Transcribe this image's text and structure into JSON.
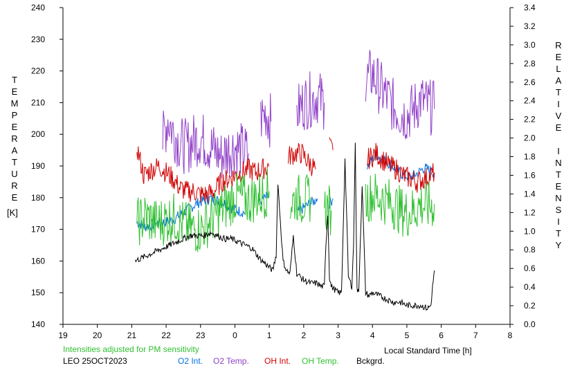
{
  "chart_data": {
    "type": "line",
    "xlabel": "Local Standard Time [h]",
    "x_ticks": [
      19,
      20,
      21,
      22,
      23,
      0,
      1,
      2,
      3,
      4,
      5,
      6,
      7,
      8
    ],
    "x_tick_labels": [
      "19",
      "20",
      "21",
      "22",
      "23",
      "0",
      "1",
      "2",
      "3",
      "4",
      "5",
      "6",
      "7",
      "8"
    ],
    "xlim": [
      19,
      32
    ],
    "left_axis": {
      "label_letters": [
        "T",
        "E",
        "M",
        "P",
        "E",
        "R",
        "A",
        "T",
        "U",
        "R",
        "E"
      ],
      "unit": "[K]",
      "ylim": [
        140,
        240
      ],
      "ticks": [
        "140",
        "150",
        "160",
        "170",
        "180",
        "190",
        "200",
        "210",
        "220",
        "230",
        "240"
      ]
    },
    "right_axis": {
      "label_line1": [
        "R",
        "E",
        "L",
        "A",
        "T",
        "I",
        "V",
        "E"
      ],
      "label_line2": [
        "I",
        "N",
        "T",
        "E",
        "N",
        "S",
        "I",
        "T",
        "Y"
      ],
      "ylim": [
        0.0,
        3.4
      ],
      "ticks": [
        "0.0",
        "0.2",
        "0.4",
        "0.6",
        "0.8",
        "1.0",
        "1.2",
        "1.4",
        "1.6",
        "1.8",
        "2.0",
        "2.2",
        "2.4",
        "2.6",
        "2.8",
        "3.0",
        "3.2",
        "3.4"
      ]
    },
    "note": "Intensities adjusted for PM sensitivity",
    "station": "LEO 25OCT2023",
    "series": [
      {
        "name": "O2 Int.",
        "color": "#0070e0",
        "axis": "right",
        "segments": [
          [
            [
              21.15,
              1.1
            ],
            [
              21.4,
              1.05
            ],
            [
              21.7,
              1.08
            ],
            [
              22.0,
              1.1
            ],
            [
              22.2,
              1.12
            ],
            [
              22.5,
              1.2
            ],
            [
              22.7,
              1.25
            ],
            [
              22.9,
              1.3
            ],
            [
              23.1,
              1.33
            ],
            [
              23.3,
              1.35
            ],
            [
              23.5,
              1.33
            ],
            [
              23.7,
              1.3
            ],
            [
              23.9,
              1.25
            ],
            [
              24.1,
              1.22
            ],
            [
              24.3,
              1.2
            ]
          ],
          [
            [
              24.7,
              1.3
            ],
            [
              24.85,
              1.35
            ],
            [
              25.0,
              1.38
            ]
          ],
          [
            [
              25.8,
              1.2
            ],
            [
              26.0,
              1.25
            ],
            [
              26.2,
              1.3
            ],
            [
              26.4,
              1.35
            ]
          ],
          [
            [
              26.75,
              1.3
            ],
            [
              26.85,
              1.35
            ]
          ],
          [
            [
              27.85,
              1.7
            ],
            [
              28.1,
              1.82
            ],
            [
              28.3,
              1.78
            ],
            [
              28.5,
              1.72
            ],
            [
              28.7,
              1.66
            ],
            [
              28.9,
              1.6
            ],
            [
              29.1,
              1.58
            ],
            [
              29.3,
              1.62
            ],
            [
              29.5,
              1.68
            ],
            [
              29.7,
              1.65
            ],
            [
              29.8,
              1.62
            ]
          ]
        ]
      },
      {
        "name": "O2 Temp.",
        "color": "#9040c8",
        "axis": "left",
        "segments": [
          [
            [
              21.9,
              198
            ],
            [
              22.05,
              205
            ],
            [
              22.2,
              201
            ],
            [
              22.4,
              197
            ],
            [
              22.6,
              196
            ],
            [
              22.8,
              198
            ],
            [
              23.0,
              199
            ],
            [
              23.2,
              197
            ],
            [
              23.4,
              195
            ],
            [
              23.6,
              193
            ],
            [
              23.8,
              195
            ],
            [
              24.0,
              196
            ],
            [
              24.2,
              195
            ],
            [
              24.4,
              194
            ]
          ],
          [
            [
              24.75,
              205
            ],
            [
              24.9,
              207
            ],
            [
              25.05,
              204
            ]
          ],
          [
            [
              25.8,
              207
            ],
            [
              26.0,
              210
            ],
            [
              26.2,
              211
            ],
            [
              26.4,
              212
            ],
            [
              26.6,
              210
            ]
          ],
          [
            [
              27.8,
              217
            ],
            [
              28.0,
              219
            ],
            [
              28.2,
              215
            ],
            [
              28.4,
              212
            ],
            [
              28.6,
              209
            ],
            [
              28.8,
              207
            ],
            [
              29.0,
              206
            ],
            [
              29.2,
              208
            ],
            [
              29.4,
              211
            ],
            [
              29.6,
              209
            ],
            [
              29.8,
              208
            ]
          ]
        ]
      },
      {
        "name": "OH Int.",
        "color": "#d00000",
        "axis": "left",
        "segments": [
          [
            [
              21.15,
              196
            ],
            [
              21.35,
              187
            ],
            [
              21.6,
              189
            ],
            [
              21.8,
              190
            ],
            [
              22.0,
              188
            ],
            [
              22.2,
              186
            ],
            [
              22.4,
              183
            ],
            [
              22.6,
              182
            ],
            [
              22.8,
              182
            ],
            [
              23.0,
              181
            ],
            [
              23.2,
              181
            ],
            [
              23.4,
              182
            ],
            [
              23.6,
              185
            ],
            [
              23.8,
              186
            ],
            [
              24.0,
              187
            ],
            [
              24.2,
              188
            ],
            [
              24.4,
              189
            ],
            [
              24.6,
              188
            ],
            [
              24.8,
              189
            ],
            [
              25.0,
              190
            ]
          ],
          [
            [
              25.55,
              193
            ],
            [
              25.75,
              194
            ],
            [
              25.95,
              194
            ],
            [
              26.15,
              191
            ],
            [
              26.35,
              189
            ]
          ],
          [
            [
              26.75,
              196
            ],
            [
              26.85,
              195
            ]
          ],
          [
            [
              27.85,
              192
            ],
            [
              28.1,
              194
            ],
            [
              28.3,
              192
            ],
            [
              28.5,
              190
            ],
            [
              28.7,
              189
            ],
            [
              28.9,
              187
            ],
            [
              29.1,
              186
            ],
            [
              29.3,
              185
            ],
            [
              29.5,
              186
            ],
            [
              29.7,
              187
            ],
            [
              29.8,
              188
            ]
          ]
        ]
      },
      {
        "name": "OH Temp.",
        "color": "#30c030",
        "axis": "left",
        "segments": [
          [
            [
              21.15,
              172
            ],
            [
              21.4,
              174
            ],
            [
              21.7,
              172
            ],
            [
              22.0,
              173
            ],
            [
              22.2,
              174
            ],
            [
              22.4,
              172
            ],
            [
              22.6,
              171
            ],
            [
              22.8,
              170
            ],
            [
              23.0,
              170
            ],
            [
              23.2,
              172
            ],
            [
              23.4,
              174
            ],
            [
              23.6,
              176
            ],
            [
              23.8,
              178
            ],
            [
              24.0,
              180
            ],
            [
              24.2,
              180
            ],
            [
              24.4,
              179
            ],
            [
              24.6,
              180
            ],
            [
              24.8,
              181
            ],
            [
              25.0,
              182
            ]
          ],
          [
            [
              25.6,
              178
            ],
            [
              25.8,
              180
            ],
            [
              26.0,
              179
            ],
            [
              26.2,
              180
            ]
          ],
          [
            [
              26.6,
              177
            ],
            [
              26.8,
              176
            ]
          ],
          [
            [
              27.8,
              179
            ],
            [
              28.0,
              181
            ],
            [
              28.2,
              180
            ],
            [
              28.4,
              179
            ],
            [
              28.6,
              178
            ],
            [
              28.8,
              176
            ],
            [
              29.0,
              175
            ],
            [
              29.2,
              176
            ],
            [
              29.4,
              178
            ],
            [
              29.6,
              177
            ],
            [
              29.8,
              178
            ]
          ]
        ]
      },
      {
        "name": "Bckgrd.",
        "color": "#000000",
        "axis": "left",
        "segments": [
          [
            [
              21.1,
              160
            ],
            [
              21.3,
              161
            ],
            [
              21.5,
              162
            ],
            [
              21.7,
              163
            ],
            [
              21.9,
              164
            ],
            [
              22.1,
              165
            ],
            [
              22.3,
              166
            ],
            [
              22.5,
              167
            ],
            [
              22.7,
              168
            ],
            [
              22.9,
              168
            ],
            [
              23.1,
              168
            ],
            [
              23.3,
              169
            ],
            [
              23.5,
              168
            ],
            [
              23.7,
              167
            ],
            [
              23.9,
              167
            ],
            [
              24.1,
              166
            ],
            [
              24.3,
              165
            ],
            [
              24.5,
              164
            ],
            [
              24.7,
              161
            ],
            [
              24.9,
              159
            ],
            [
              25.0,
              158
            ],
            [
              25.1,
              157
            ],
            [
              25.2,
              162
            ],
            [
              25.25,
              185
            ],
            [
              25.3,
              176
            ],
            [
              25.4,
              160
            ],
            [
              25.5,
              157
            ],
            [
              25.6,
              156
            ],
            [
              25.7,
              168
            ],
            [
              25.8,
              156
            ],
            [
              25.9,
              155
            ],
            [
              26.0,
              154
            ],
            [
              26.2,
              153
            ],
            [
              26.4,
              153
            ],
            [
              26.5,
              152
            ],
            [
              26.6,
              152
            ],
            [
              26.65,
              166
            ],
            [
              26.7,
              175
            ],
            [
              26.75,
              155
            ],
            [
              26.8,
              152
            ],
            [
              26.9,
              151
            ],
            [
              27.0,
              150
            ],
            [
              27.1,
              150
            ],
            [
              27.2,
              192
            ],
            [
              27.3,
              155
            ],
            [
              27.4,
              152
            ],
            [
              27.45,
              165
            ],
            [
              27.5,
              198
            ],
            [
              27.55,
              151
            ],
            [
              27.6,
              150
            ],
            [
              27.7,
              184
            ],
            [
              27.8,
              150
            ],
            [
              27.9,
              149
            ],
            [
              28.0,
              150
            ],
            [
              28.2,
              149
            ],
            [
              28.4,
              148
            ],
            [
              28.6,
              147
            ],
            [
              28.8,
              147
            ],
            [
              29.0,
              146
            ],
            [
              29.2,
              146
            ],
            [
              29.4,
              146
            ],
            [
              29.6,
              145
            ],
            [
              29.7,
              146
            ],
            [
              29.75,
              152
            ],
            [
              29.8,
              157
            ]
          ]
        ]
      }
    ]
  }
}
